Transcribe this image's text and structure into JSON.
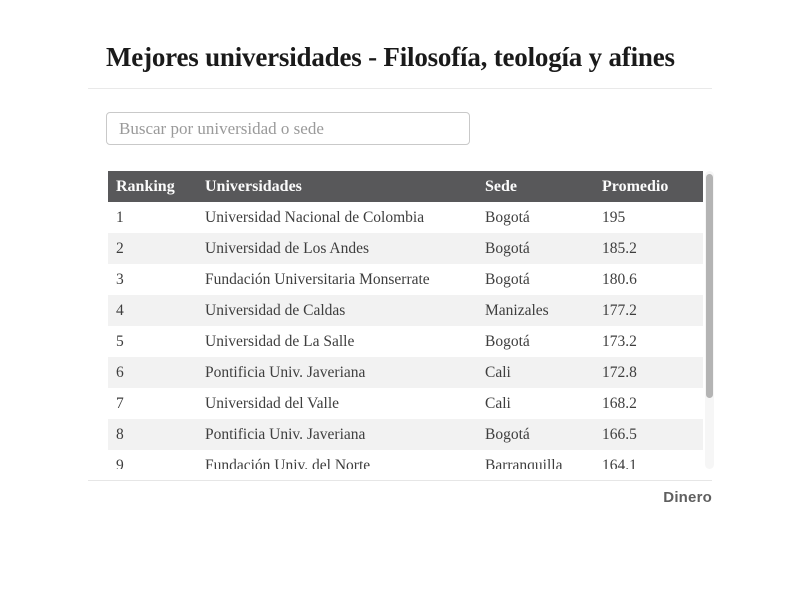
{
  "page": {
    "title": "Mejores universidades - Filosofía, teología y afines",
    "source_label": "Dinero"
  },
  "search": {
    "placeholder": "Buscar por universidad o sede"
  },
  "table": {
    "columns": [
      "Ranking",
      "Universidades",
      "Sede",
      "Promedio"
    ],
    "rows": [
      {
        "ranking": "1",
        "universidad": "Universidad Nacional de Colombia",
        "sede": "Bogotá",
        "promedio": "195"
      },
      {
        "ranking": "2",
        "universidad": "Universidad de Los Andes",
        "sede": "Bogotá",
        "promedio": "185.2"
      },
      {
        "ranking": "3",
        "universidad": "Fundación Universitaria Monserrate",
        "sede": "Bogotá",
        "promedio": "180.6"
      },
      {
        "ranking": "4",
        "universidad": "Universidad de Caldas",
        "sede": "Manizales",
        "promedio": "177.2"
      },
      {
        "ranking": "5",
        "universidad": "Universidad de La Salle",
        "sede": "Bogotá",
        "promedio": "173.2"
      },
      {
        "ranking": "6",
        "universidad": "Pontificia Univ. Javeriana",
        "sede": "Cali",
        "promedio": "172.8"
      },
      {
        "ranking": "7",
        "universidad": "Universidad del Valle",
        "sede": "Cali",
        "promedio": "168.2"
      },
      {
        "ranking": "8",
        "universidad": "Pontificia Univ. Javeriana",
        "sede": "Bogotá",
        "promedio": "166.5"
      },
      {
        "ranking": "9",
        "universidad": "Fundación Univ. del Norte",
        "sede": "Barranquilla",
        "promedio": "164.1"
      }
    ]
  },
  "colors": {
    "header_bg": "#58585a",
    "header_text": "#fbfbfb",
    "row_alt_bg": "#f2f2f2",
    "body_text": "#3e3e3e",
    "title_text": "#1a1a1a",
    "scrollbar_thumb": "#b4b4b4"
  }
}
